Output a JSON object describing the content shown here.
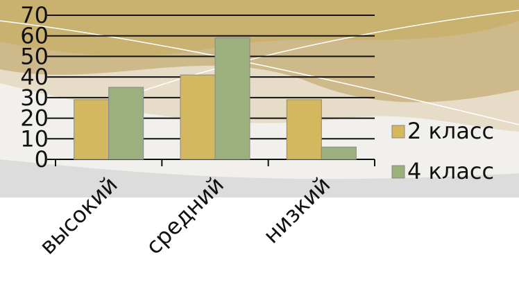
{
  "chart_data": {
    "type": "bar",
    "categories": [
      "высокий",
      "средний",
      "низкий"
    ],
    "series": [
      {
        "name": "2 класс",
        "color": "#d4b860",
        "values": [
          29,
          41,
          29
        ]
      },
      {
        "name": "4 класс",
        "color": "#9bb07d",
        "values": [
          35,
          59,
          6
        ]
      }
    ],
    "ylim": [
      0,
      70
    ],
    "yticks": [
      0,
      10,
      20,
      30,
      40,
      50,
      60,
      70
    ],
    "grid": true,
    "legend": "right"
  }
}
